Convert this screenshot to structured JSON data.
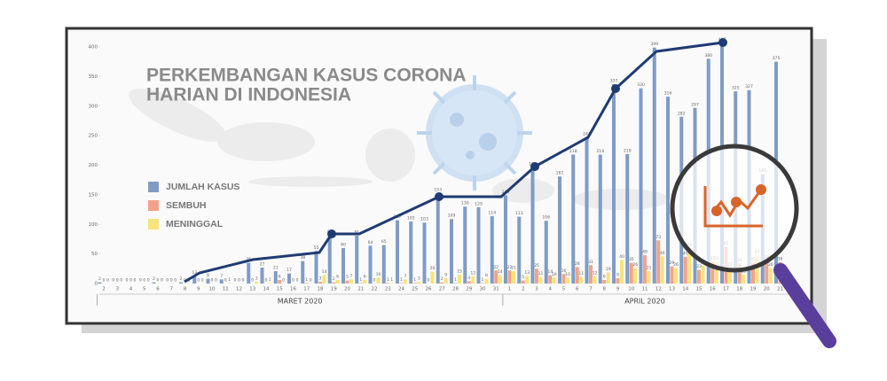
{
  "chart_data": {
    "type": "bar",
    "title": [
      "PERKEMBANGAN KASUS CORONA",
      "HARIAN DI INDONESIA"
    ],
    "categories": [
      "2",
      "3",
      "4",
      "5",
      "6",
      "7",
      "8",
      "9",
      "10",
      "11",
      "12",
      "13",
      "14",
      "15",
      "16",
      "17",
      "18",
      "19",
      "20",
      "21",
      "22",
      "23",
      "24",
      "25",
      "26",
      "27",
      "28",
      "29",
      "30",
      "31",
      "1",
      "2",
      "3",
      "4",
      "5",
      "6",
      "7",
      "8",
      "9",
      "10",
      "11",
      "12",
      "13",
      "14",
      "15",
      "16",
      "17",
      "18",
      "19",
      "20",
      "21"
    ],
    "x_groups": [
      "MARET 2020",
      "APRIL 2020"
    ],
    "ylim": [
      0,
      400
    ],
    "yticks": [
      0,
      50,
      100,
      150,
      200,
      250,
      300,
      350,
      400
    ],
    "series": [
      {
        "name": "JUMLAH KASUS",
        "color": "#7f9cc6",
        "values": [
          2,
          0,
          0,
          0,
          2,
          0,
          2,
          13,
          8,
          7,
          0,
          35,
          27,
          21,
          17,
          38,
          55,
          82,
          60,
          81,
          64,
          65,
          107,
          105,
          103,
          153,
          109,
          130,
          129,
          114,
          149,
          113,
          196,
          106,
          181,
          218,
          247,
          218,
          337,
          219,
          330,
          399,
          316,
          282,
          297,
          380,
          407,
          325,
          327,
          185,
          375
        ]
      },
      {
        "name": "SEMBUH",
        "color": "#f2a387",
        "values": [
          0,
          0,
          0,
          0,
          0,
          0,
          0,
          0,
          0,
          0,
          0,
          0,
          0,
          6,
          0,
          1,
          3,
          2,
          5,
          1,
          0,
          1,
          1,
          1,
          0,
          2,
          1,
          4,
          1,
          22,
          22,
          5,
          25,
          14,
          16,
          28,
          31,
          6,
          9,
          35,
          48,
          73,
          29,
          45,
          23,
          37,
          62,
          34,
          35,
          38,
          36
        ]
      },
      {
        "name": "MENINGGAL",
        "color": "#f8e27e",
        "values": [
          0,
          0,
          0,
          0,
          0,
          0,
          0,
          0,
          0,
          1,
          0,
          3,
          1,
          0,
          0,
          0,
          14,
          6,
          7,
          6,
          10,
          1,
          7,
          3,
          20,
          9,
          15,
          12,
          8,
          14,
          21,
          13,
          11,
          10,
          10,
          11,
          12,
          19,
          40,
          26,
          21,
          46,
          26,
          60,
          30,
          37,
          27,
          15,
          47,
          26,
          12
        ]
      }
    ]
  }
}
